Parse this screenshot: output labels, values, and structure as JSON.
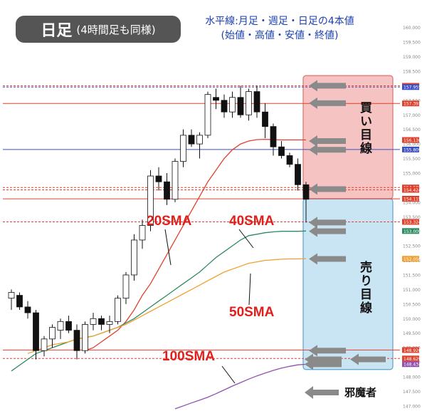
{
  "title": {
    "main": "日足",
    "sub": "(4時間足も同様)"
  },
  "note": {
    "line1": "水平線:月足・週足・日足の4本値",
    "line2": "(始値・高値・安値・終値)"
  },
  "sma_labels": {
    "sma20": "20SMA",
    "sma40": "40SMA",
    "sma50": "50SMA",
    "sma100": "100SMA"
  },
  "zones": {
    "buy": "買い目線",
    "sell": "売り目線"
  },
  "legend": {
    "label": "邪魔者"
  },
  "chart_data": {
    "type": "candlestick",
    "ylim": [
      146.8,
      160.8
    ],
    "y_ticks": [
      "160.000",
      "159.500",
      "159.000",
      "158.500",
      "158.000",
      "157.500",
      "157.000",
      "156.500",
      "156.000",
      "155.500",
      "155.000",
      "154.500",
      "154.000",
      "153.500",
      "153.000",
      "152.500",
      "152.000",
      "151.500",
      "151.000",
      "150.500",
      "150.000",
      "149.500",
      "149.000",
      "148.500",
      "148.000",
      "147.500",
      "147.000"
    ],
    "price_labels": [
      {
        "text": "157.998",
        "value": 157.998,
        "color": "#e0402c"
      },
      {
        "text": "157.955",
        "value": 157.955,
        "color": "#3a4fc0"
      },
      {
        "text": "157.393",
        "value": 157.393,
        "color": "#e0402c"
      },
      {
        "text": "156.136",
        "value": 156.136,
        "color": "#e0402c"
      },
      {
        "text": "155.809",
        "value": 155.809,
        "color": "#3a4fc0"
      },
      {
        "text": "154.505",
        "value": 154.505,
        "color": "#e0402c"
      },
      {
        "text": "154.424",
        "value": 154.424,
        "color": "#e0402c"
      },
      {
        "text": "154.119",
        "value": 154.119,
        "color": "#111111"
      },
      {
        "text": "154.115",
        "value": 154.115,
        "color": "#e0402c"
      },
      {
        "text": "153.324",
        "value": 153.324,
        "color": "#e0402c"
      },
      {
        "text": "153.009",
        "value": 153.009,
        "color": "#2e8a60"
      },
      {
        "text": "152.056",
        "value": 152.056,
        "color": "#f0a030"
      },
      {
        "text": "148.920",
        "value": 148.92,
        "color": "#e0402c"
      },
      {
        "text": "148.629",
        "value": 148.629,
        "color": "#e0402c"
      },
      {
        "text": "148.434",
        "value": 148.434,
        "color": "#9050b0"
      }
    ],
    "h_lines": [
      {
        "value": 157.998,
        "color": "#e0402c",
        "style": "dashed"
      },
      {
        "value": 157.955,
        "color": "#3a4fc0",
        "style": "dashed"
      },
      {
        "value": 157.393,
        "color": "#e0402c",
        "style": "solid"
      },
      {
        "value": 155.809,
        "color": "#3a4fc0",
        "style": "solid"
      },
      {
        "value": 154.505,
        "color": "#e0402c",
        "style": "dashed"
      },
      {
        "value": 154.424,
        "color": "#e0402c",
        "style": "dashed"
      },
      {
        "value": 154.115,
        "color": "#e0402c",
        "style": "solid"
      },
      {
        "value": 153.324,
        "color": "#e0402c",
        "style": "dashed"
      },
      {
        "value": 148.92,
        "color": "#e0402c",
        "style": "solid"
      },
      {
        "value": 148.629,
        "color": "#e0402c",
        "style": "dashed"
      }
    ],
    "candles": [
      [
        150.7,
        151.0,
        150.3,
        150.9
      ],
      [
        150.8,
        150.9,
        150.3,
        150.4
      ],
      [
        150.4,
        150.6,
        150.0,
        150.2
      ],
      [
        150.2,
        150.3,
        148.6,
        148.9
      ],
      [
        148.9,
        149.4,
        148.7,
        149.3
      ],
      [
        149.3,
        149.8,
        149.0,
        149.7
      ],
      [
        149.6,
        150.0,
        149.3,
        149.9
      ],
      [
        149.9,
        150.1,
        149.5,
        149.6
      ],
      [
        149.6,
        149.8,
        148.6,
        148.9
      ],
      [
        148.9,
        149.9,
        148.8,
        149.8
      ],
      [
        149.8,
        150.2,
        149.6,
        150.0
      ],
      [
        150.0,
        150.1,
        149.6,
        149.8
      ],
      [
        149.8,
        150.1,
        149.5,
        149.9
      ],
      [
        149.9,
        150.8,
        149.8,
        150.7
      ],
      [
        150.7,
        151.6,
        150.5,
        151.5
      ],
      [
        151.5,
        152.9,
        151.3,
        152.7
      ],
      [
        152.7,
        153.4,
        152.4,
        153.2
      ],
      [
        153.2,
        155.1,
        153.0,
        154.9
      ],
      [
        154.9,
        155.2,
        154.4,
        154.7
      ],
      [
        154.7,
        155.0,
        153.9,
        154.1
      ],
      [
        154.1,
        155.5,
        154.0,
        155.4
      ],
      [
        155.4,
        156.5,
        155.2,
        156.3
      ],
      [
        156.3,
        156.5,
        155.9,
        156.0
      ],
      [
        156.0,
        156.4,
        155.5,
        156.3
      ],
      [
        156.3,
        157.8,
        156.2,
        157.7
      ],
      [
        157.6,
        157.9,
        157.2,
        157.5
      ],
      [
        157.5,
        157.7,
        156.9,
        157.1
      ],
      [
        157.1,
        157.8,
        156.9,
        157.6
      ],
      [
        157.6,
        158.0,
        156.9,
        157.0
      ],
      [
        157.0,
        157.9,
        156.8,
        157.8
      ],
      [
        157.8,
        158.0,
        156.9,
        157.1
      ],
      [
        157.1,
        157.4,
        156.2,
        156.6
      ],
      [
        156.6,
        156.7,
        155.6,
        155.9
      ],
      [
        155.9,
        156.1,
        155.5,
        155.6
      ],
      [
        155.6,
        155.7,
        155.2,
        155.3
      ],
      [
        155.3,
        155.5,
        154.4,
        154.6
      ],
      [
        154.6,
        154.7,
        153.3,
        154.1
      ]
    ],
    "series": [
      {
        "name": "20SMA",
        "color": "#e0402c",
        "values": [
          null,
          null,
          null,
          null,
          null,
          null,
          null,
          null,
          null,
          148.9,
          149.0,
          149.2,
          149.4,
          149.6,
          149.9,
          150.3,
          150.8,
          151.2,
          151.7,
          152.2,
          152.7,
          153.2,
          153.7,
          154.2,
          154.7,
          155.1,
          155.5,
          155.8,
          156.0,
          156.1,
          156.15,
          156.16,
          156.15,
          156.14,
          156.14,
          156.14,
          156.14
        ]
      },
      {
        "name": "40SMA",
        "color": "#2e8a60",
        "values": [
          148.2,
          148.4,
          148.6,
          148.8,
          148.9,
          149.0,
          149.1,
          149.2,
          149.3,
          149.35,
          149.4,
          149.5,
          149.6,
          149.7,
          149.85,
          150.0,
          150.2,
          150.4,
          150.6,
          150.8,
          151.0,
          151.2,
          151.4,
          151.6,
          151.85,
          152.1,
          152.3,
          152.5,
          152.7,
          152.85,
          152.9,
          152.95,
          152.98,
          153.0,
          153.0,
          153.0,
          153.01
        ]
      },
      {
        "name": "50SMA",
        "color": "#f0a030",
        "values": [
          null,
          null,
          148.8,
          148.9,
          149.0,
          149.1,
          149.15,
          149.2,
          149.3,
          149.35,
          149.4,
          149.5,
          149.6,
          149.7,
          149.8,
          149.95,
          150.1,
          150.25,
          150.4,
          150.55,
          150.7,
          150.85,
          151.0,
          151.15,
          151.3,
          151.45,
          151.6,
          151.7,
          151.8,
          151.9,
          151.95,
          152.0,
          152.02,
          152.04,
          152.05,
          152.05,
          152.06
        ]
      },
      {
        "name": "100SMA",
        "color": "#9050b0",
        "values": [
          null,
          null,
          null,
          null,
          null,
          null,
          null,
          null,
          null,
          null,
          null,
          null,
          null,
          null,
          null,
          null,
          null,
          null,
          null,
          null,
          146.9,
          147.0,
          147.1,
          147.2,
          147.3,
          147.42,
          147.55,
          147.68,
          147.8,
          147.92,
          148.03,
          148.13,
          148.22,
          148.3,
          148.36,
          148.41,
          148.43
        ]
      }
    ],
    "zones": [
      {
        "name": "buy",
        "from": 154.119,
        "to": 158.35,
        "color": "#f4b8b8",
        "border": "#e07070"
      },
      {
        "name": "sell",
        "from": 148.25,
        "to": 154.119,
        "color": "#bfe0f2",
        "border": "#5aa0d0"
      }
    ],
    "arrows": [
      158.0,
      157.4,
      156.1,
      155.8,
      154.45,
      153.3,
      153.0,
      152.05,
      148.9,
      148.6,
      148.43
    ]
  }
}
